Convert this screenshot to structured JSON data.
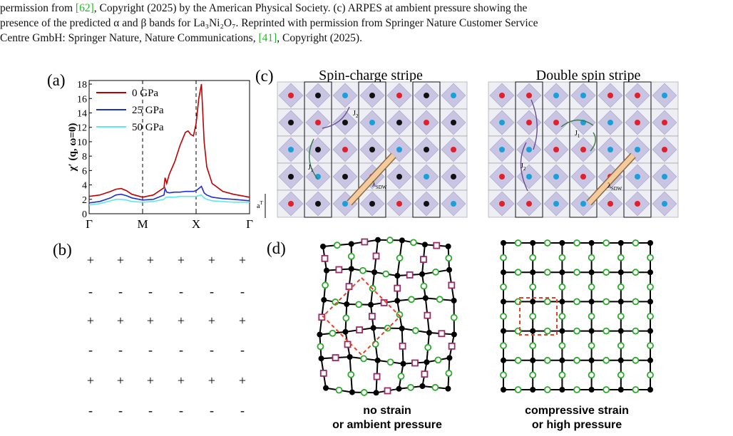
{
  "caption": {
    "line1": [
      "permission from ",
      "[62]",
      ", Copyright (2025) by the American Physical Society.  (c) ARPES at ambient pressure showing the"
    ],
    "line2": [
      "presence of the predicted α and β bands for La₃Ni₂O₇.  Reprinted with permission from Springer Nature Customer Service"
    ],
    "line3": [
      "Centre GmbH: Springer Nature, Nature Communications,  ",
      "[41]",
      ", Copyright (2025)."
    ]
  },
  "panels": {
    "a": "(a)",
    "b": "(b)",
    "c": "(c)",
    "d": "(d)"
  },
  "chart_data": {
    "type": "line",
    "ylabel": "χ′ (q, ω=0)",
    "x": [
      0,
      0.2,
      0.4,
      0.5,
      0.6,
      0.7,
      0.8,
      1.0,
      1.2,
      1.4,
      1.42,
      1.45,
      1.5,
      1.6,
      1.7,
      1.8,
      1.85,
      1.9,
      1.95,
      2.0,
      2.05,
      2.1,
      2.15,
      2.2,
      2.3,
      2.5,
      2.7,
      3.0
    ],
    "xlim": [
      0,
      3
    ],
    "xticks": [
      {
        "value": 0,
        "label": "Γ"
      },
      {
        "value": 1,
        "label": "M"
      },
      {
        "value": 2,
        "label": "X"
      },
      {
        "value": 3,
        "label": "Γ"
      }
    ],
    "ylim": [
      0,
      18.5
    ],
    "yticks": [
      0,
      2,
      4,
      6,
      8,
      10,
      12,
      14,
      16,
      18
    ],
    "legend": "upper left",
    "grid": false,
    "series": [
      {
        "name": "0 GPa",
        "color": "#c00000",
        "values": [
          2.4,
          2.6,
          3.1,
          3.4,
          3.5,
          3.2,
          2.7,
          2.3,
          2.6,
          3.6,
          5.0,
          4.2,
          5.5,
          7.2,
          9.5,
          11.3,
          11.5,
          11.0,
          10.8,
          12.5,
          16,
          18,
          10,
          6.5,
          4.2,
          3.1,
          2.7,
          2.3
        ]
      },
      {
        "name": "25 GPa",
        "color": "#1f2fd0",
        "values": [
          1.5,
          1.7,
          2.2,
          2.6,
          2.7,
          2.5,
          2.2,
          1.9,
          2.0,
          2.6,
          3.5,
          3.0,
          2.9,
          3.0,
          3.0,
          3.1,
          3.1,
          3.1,
          3.1,
          3.2,
          3.5,
          3.8,
          2.9,
          2.6,
          2.3,
          2.1,
          2.0,
          1.8
        ]
      },
      {
        "name": "50 GPa",
        "color": "#5fe8f0",
        "values": [
          1.2,
          1.4,
          1.8,
          2.0,
          2.0,
          1.9,
          1.7,
          1.6,
          1.7,
          2.0,
          2.2,
          2.3,
          2.3,
          2.3,
          2.4,
          2.4,
          2.4,
          2.4,
          2.4,
          2.4,
          2.5,
          2.6,
          2.2,
          2.0,
          1.8,
          1.7,
          1.6,
          1.6
        ]
      }
    ]
  },
  "panel_b": {
    "rows": [
      [
        "+",
        "+",
        "+",
        "+",
        "+",
        "+"
      ],
      [
        "-",
        "-",
        "-",
        "-",
        "-",
        "-"
      ],
      [
        "+",
        "+",
        "+",
        "+",
        "+",
        "+"
      ],
      [
        "-",
        "-",
        "-",
        "-",
        "-",
        "-"
      ],
      [
        "+",
        "+",
        "+",
        "+",
        "+",
        "+"
      ],
      [
        "-",
        "-",
        "-",
        "-",
        "-",
        "-"
      ]
    ]
  },
  "panel_c": {
    "titles": [
      "Spin-charge stripe",
      "Double spin stripe"
    ],
    "annotations": [
      {
        "main": "J",
        "sub": "2"
      },
      {
        "main": "J",
        "sub": "1"
      },
      {
        "main": "λ",
        "sub": "SDW"
      },
      {
        "main": "a",
        "sup": "T"
      },
      {
        "main": "J",
        "sub": "2"
      },
      {
        "main": "J",
        "sub": "1"
      },
      {
        "main": "λ",
        "sub": "SDW"
      }
    ]
  },
  "panel_d": {
    "captions": [
      [
        "no strain",
        "or ambient pressure"
      ],
      [
        "compressive strain",
        "or high pressure"
      ]
    ]
  }
}
